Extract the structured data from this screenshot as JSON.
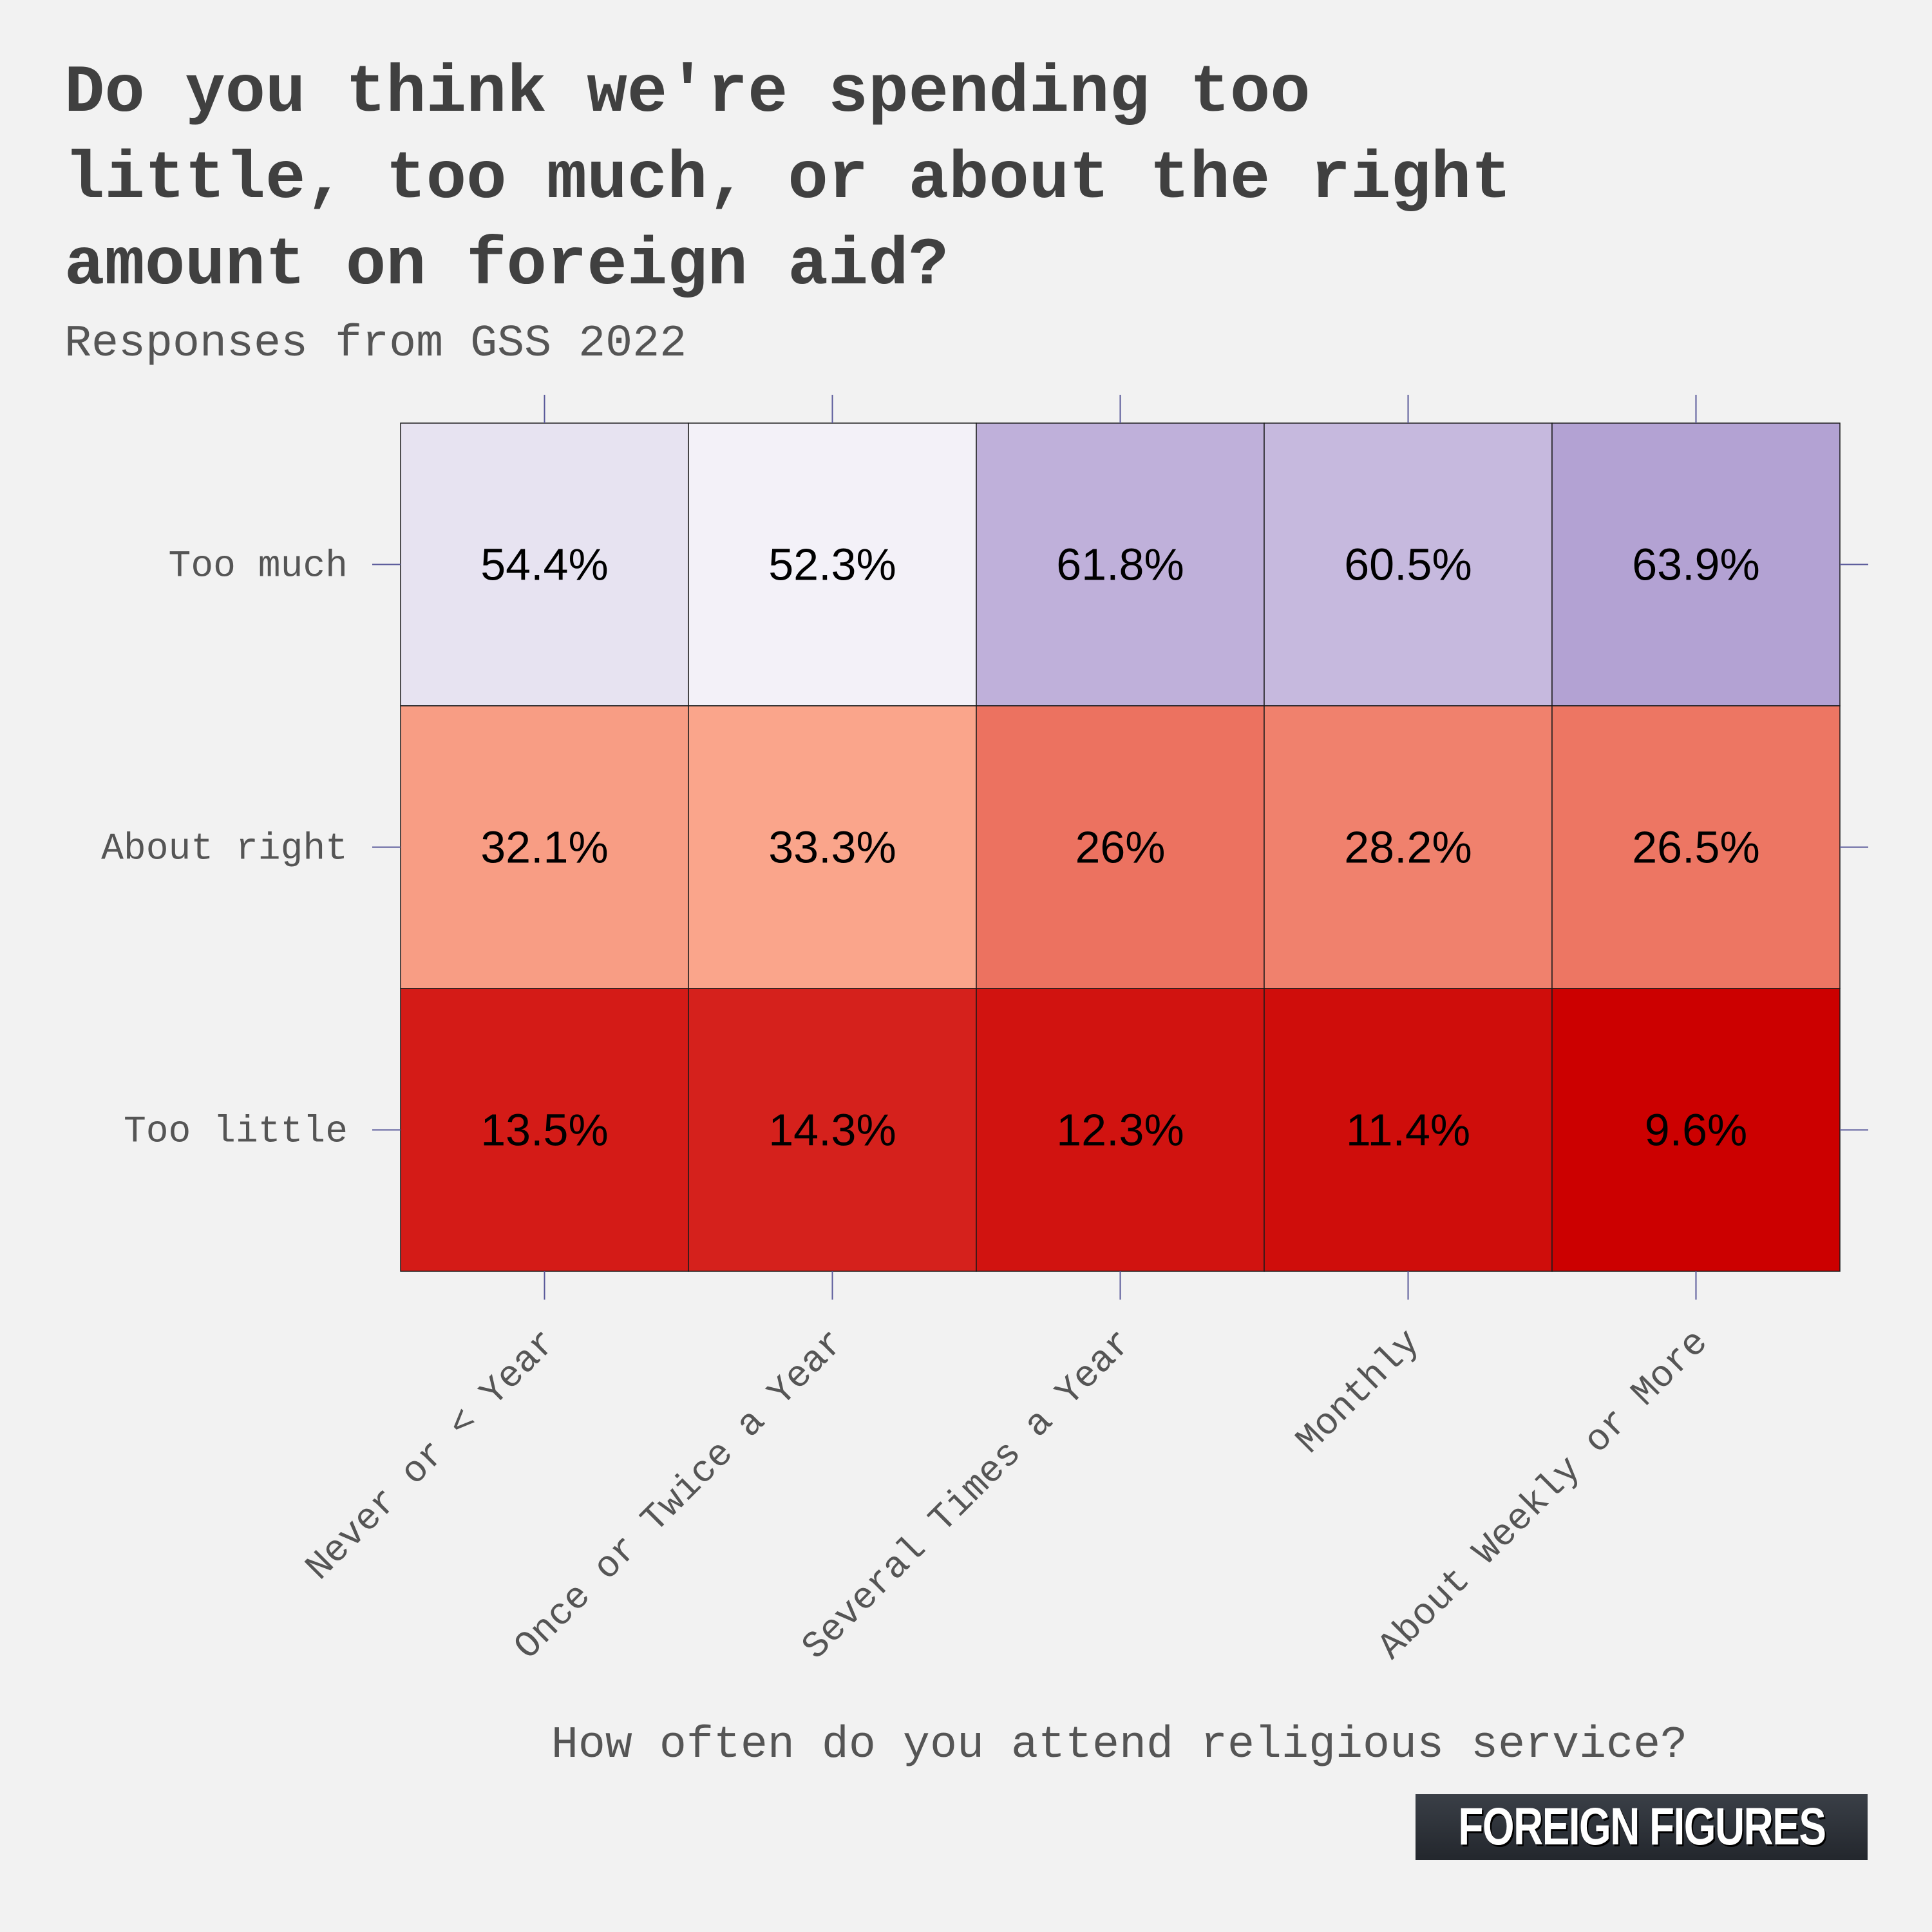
{
  "title_lines": [
    "Do you think we're spending too",
    "little, too much, or about the right",
    "amount on foreign aid?"
  ],
  "subtitle": "Responses from GSS 2022",
  "brand": "FOREIGN FIGURES",
  "colors": {
    "background": "#f2f2f2",
    "tick": "#5b5b9b",
    "text": "#555555",
    "scale_purple_low": "#f3f1f8",
    "scale_purple_high": "#b3a2d3",
    "scale_red_low": "#faa58b",
    "scale_red_high": "#cc0000"
  },
  "chart_data": {
    "type": "heatmap",
    "title": "Do you think we're spending too little, too much, or about the right amount on foreign aid?",
    "subtitle": "Responses from GSS 2022",
    "xlabel": "How often do you attend religious service?",
    "ylabel": "",
    "x_categories": [
      "Never or < Year",
      "Once or Twice a Year",
      "Several Times a Year",
      "Monthly",
      "About Weekly or More"
    ],
    "y_categories": [
      "Too much",
      "About right",
      "Too little"
    ],
    "values": [
      [
        54.4,
        52.3,
        61.8,
        60.5,
        63.9
      ],
      [
        32.1,
        33.3,
        26,
        28.2,
        26.5
      ],
      [
        13.5,
        14.3,
        12.3,
        11.4,
        9.6
      ]
    ],
    "value_labels": [
      [
        "54.4%",
        "52.3%",
        "61.8%",
        "60.5%",
        "63.9%"
      ],
      [
        "32.1%",
        "33.3%",
        "26%",
        "28.2%",
        "26.5%"
      ],
      [
        "13.5%",
        "14.3%",
        "12.3%",
        "11.4%",
        "9.6%"
      ]
    ],
    "unit": "%",
    "grid": false,
    "legend": "none"
  }
}
